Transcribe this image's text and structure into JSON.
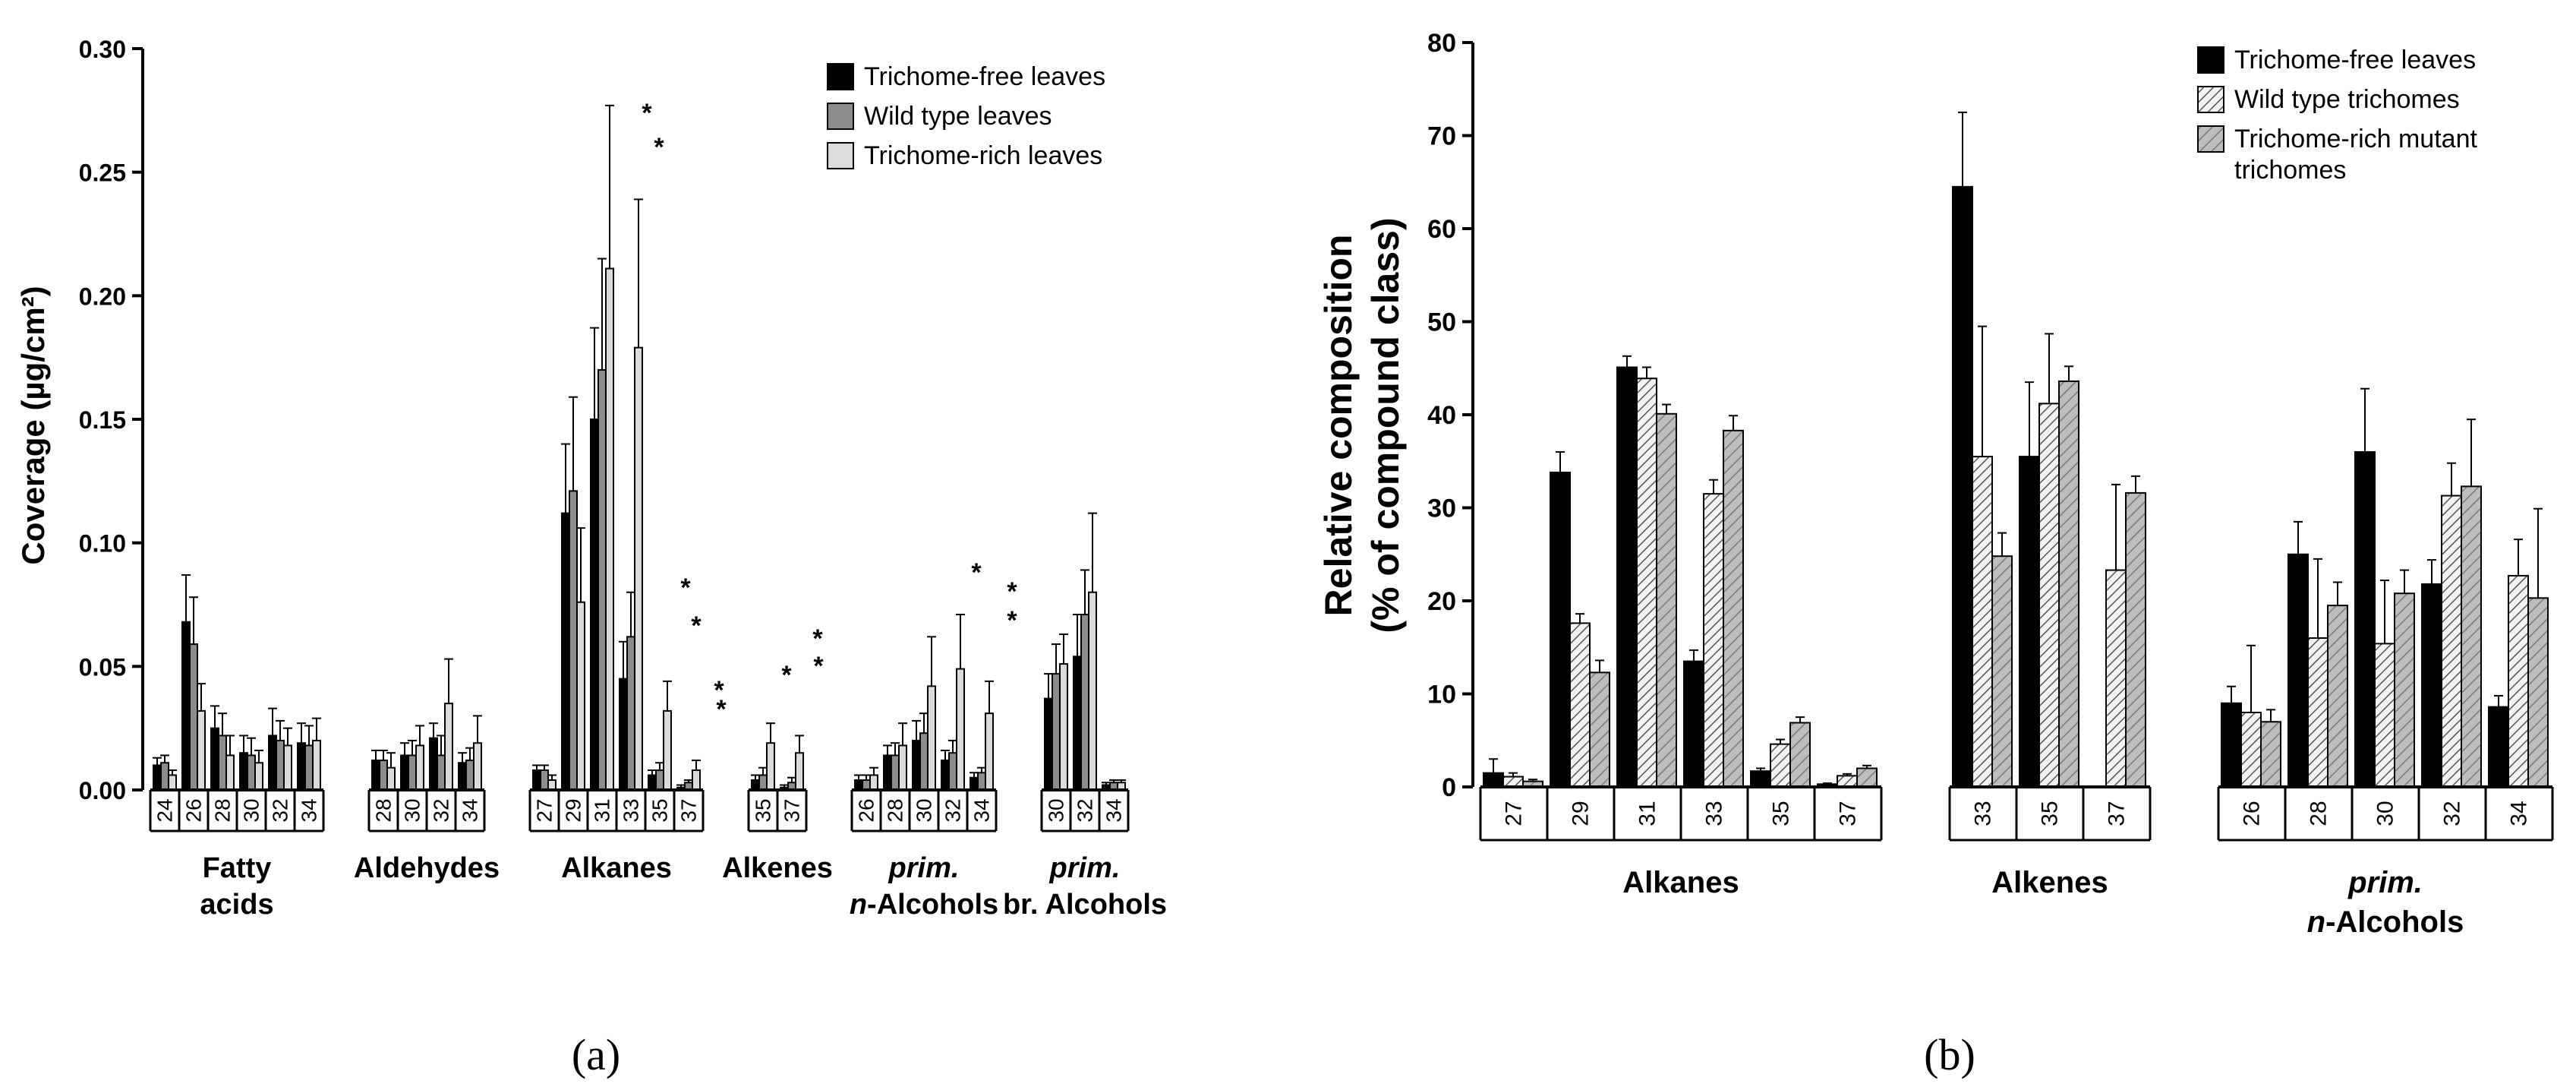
{
  "chart_data": [
    {
      "type": "bar",
      "panel_label": "(a)",
      "ylabel": "Coverage (µg/cm²)",
      "ylim": [
        0,
        0.3
      ],
      "yticks": [
        "0.00",
        "0.05",
        "0.10",
        "0.15",
        "0.20",
        "0.25",
        "0.30"
      ],
      "legend_position": "top-right",
      "series": [
        {
          "name": "Trichome-free leaves",
          "color": "#000000"
        },
        {
          "name": "Wild type leaves",
          "color": "#8c8c8c"
        },
        {
          "name": "Trichome-rich leaves",
          "color": "#dcdcdc"
        }
      ],
      "groups": [
        {
          "label": [
            "Fatty",
            "acids"
          ],
          "categories": [
            "24",
            "26",
            "28",
            "30",
            "32",
            "34"
          ],
          "values": [
            [
              0.01,
              0.011,
              0.006
            ],
            [
              0.068,
              0.059,
              0.032
            ],
            [
              0.025,
              0.022,
              0.014
            ],
            [
              0.015,
              0.014,
              0.011
            ],
            [
              0.022,
              0.02,
              0.018
            ],
            [
              0.019,
              0.018,
              0.02
            ]
          ],
          "errors": [
            [
              0.003,
              0.003,
              0.002
            ],
            [
              0.019,
              0.019,
              0.011
            ],
            [
              0.009,
              0.009,
              0.008
            ],
            [
              0.007,
              0.007,
              0.005
            ],
            [
              0.011,
              0.008,
              0.007
            ],
            [
              0.008,
              0.008,
              0.009
            ]
          ]
        },
        {
          "label": [
            "Aldehydes"
          ],
          "categories": [
            "28",
            "30",
            "32",
            "34"
          ],
          "values": [
            [
              0.012,
              0.012,
              0.009
            ],
            [
              0.014,
              0.014,
              0.018
            ],
            [
              0.021,
              0.014,
              0.035
            ],
            [
              0.011,
              0.012,
              0.019
            ]
          ],
          "errors": [
            [
              0.004,
              0.004,
              0.006
            ],
            [
              0.005,
              0.006,
              0.008
            ],
            [
              0.006,
              0.008,
              0.018
            ],
            [
              0.004,
              0.005,
              0.011
            ]
          ]
        },
        {
          "label": [
            "Alkanes"
          ],
          "categories": [
            "27",
            "29",
            "31",
            "33",
            "35",
            "37"
          ],
          "values": [
            [
              0.008,
              0.008,
              0.004
            ],
            [
              0.112,
              0.121,
              0.076
            ],
            [
              0.15,
              0.17,
              0.211
            ],
            [
              0.045,
              0.062,
              0.179
            ],
            [
              0.006,
              0.008,
              0.032
            ],
            [
              0.001,
              0.003,
              0.008
            ]
          ],
          "errors": [
            [
              0.002,
              0.002,
              0.002
            ],
            [
              0.028,
              0.038,
              0.03
            ],
            [
              0.037,
              0.045,
              0.066
            ],
            [
              0.015,
              0.018,
              0.06
            ],
            [
              0.002,
              0.003,
              0.012
            ],
            [
              0.001,
              0.001,
              0.004
            ]
          ]
        },
        {
          "label": [
            "Alkenes"
          ],
          "categories": [
            "35",
            "37"
          ],
          "values": [
            [
              0.004,
              0.006,
              0.019
            ],
            [
              0.001,
              0.003,
              0.015
            ]
          ],
          "errors": [
            [
              0.002,
              0.003,
              0.008
            ],
            [
              0.001,
              0.002,
              0.007
            ]
          ]
        },
        {
          "label": [
            "prim.",
            "n-Alcohols"
          ],
          "categories": [
            "26",
            "28",
            "30",
            "32",
            "34"
          ],
          "values": [
            [
              0.004,
              0.004,
              0.006
            ],
            [
              0.014,
              0.014,
              0.018
            ],
            [
              0.02,
              0.023,
              0.042
            ],
            [
              0.012,
              0.015,
              0.049
            ],
            [
              0.005,
              0.007,
              0.031
            ]
          ],
          "errors": [
            [
              0.002,
              0.002,
              0.003
            ],
            [
              0.004,
              0.005,
              0.009
            ],
            [
              0.008,
              0.008,
              0.02
            ],
            [
              0.004,
              0.005,
              0.022
            ],
            [
              0.002,
              0.002,
              0.013
            ]
          ]
        },
        {
          "label": [
            "prim.",
            "br. Alcohols"
          ],
          "categories": [
            "30",
            "32",
            "34"
          ],
          "values": [
            [
              0.037,
              0.047,
              0.051
            ],
            [
              0.054,
              0.071,
              0.08
            ],
            [
              0.002,
              0.003,
              0.003
            ]
          ],
          "errors": [
            [
              0.01,
              0.012,
              0.012
            ],
            [
              0.017,
              0.018,
              0.032
            ],
            [
              0.001,
              0.001,
              0.001
            ]
          ]
        }
      ],
      "significance_mark": "*"
    },
    {
      "type": "bar",
      "panel_label": "(b)",
      "ylabel": [
        "Relative composition",
        "(% of compound class)"
      ],
      "ylim": [
        0,
        80
      ],
      "yticks": [
        "0",
        "10",
        "20",
        "30",
        "40",
        "50",
        "60",
        "70",
        "80"
      ],
      "legend_position": "top-right",
      "series": [
        {
          "name": "Trichome-free leaves",
          "color": "#000000",
          "pattern": "solid"
        },
        {
          "name": "Wild type trichomes",
          "color": "#f2f2f2",
          "pattern": "hatch-dense"
        },
        {
          "name": "Trichome-rich mutant trichomes",
          "color": "#bdbdbd",
          "pattern": "hatch"
        }
      ],
      "groups": [
        {
          "label": [
            "Alkanes"
          ],
          "categories": [
            "27",
            "29",
            "31",
            "33",
            "35",
            "37"
          ],
          "values": [
            [
              1.5,
              1.1,
              0.6
            ],
            [
              33.8,
              17.6,
              12.3
            ],
            [
              45.1,
              43.9,
              40.1
            ],
            [
              13.5,
              31.5,
              38.3
            ],
            [
              1.7,
              4.6,
              6.9
            ],
            [
              0.3,
              1.2,
              2.0
            ]
          ],
          "errors": [
            [
              1.5,
              0.4,
              0.2
            ],
            [
              2.2,
              1.0,
              1.3
            ],
            [
              1.2,
              1.2,
              1.0
            ],
            [
              1.2,
              1.5,
              1.6
            ],
            [
              0.3,
              0.5,
              0.6
            ],
            [
              0.1,
              0.2,
              0.3
            ]
          ]
        },
        {
          "label": [
            "Alkenes"
          ],
          "categories": [
            "33",
            "35",
            "37"
          ],
          "values": [
            [
              64.5,
              35.5,
              24.8
            ],
            [
              35.5,
              41.2,
              43.6
            ],
            [
              0,
              23.3,
              31.6
            ]
          ],
          "errors": [
            [
              8.0,
              14.0,
              2.5
            ],
            [
              8.0,
              7.5,
              1.6
            ],
            [
              0,
              9.2,
              1.8
            ]
          ]
        },
        {
          "label": [
            "prim.",
            "n-Alcohols"
          ],
          "categories": [
            "26",
            "28",
            "30",
            "32",
            "34"
          ],
          "values": [
            [
              9.0,
              8.0,
              7.0
            ],
            [
              25.0,
              16.0,
              19.5
            ],
            [
              36.0,
              15.4,
              20.8
            ],
            [
              21.8,
              31.3,
              32.3
            ],
            [
              8.6,
              22.7,
              20.3
            ]
          ],
          "errors": [
            [
              1.8,
              7.2,
              1.3
            ],
            [
              3.5,
              8.5,
              2.5
            ],
            [
              6.8,
              6.8,
              2.5
            ],
            [
              2.6,
              3.5,
              7.2
            ],
            [
              1.2,
              3.9,
              9.6
            ]
          ]
        }
      ]
    }
  ]
}
